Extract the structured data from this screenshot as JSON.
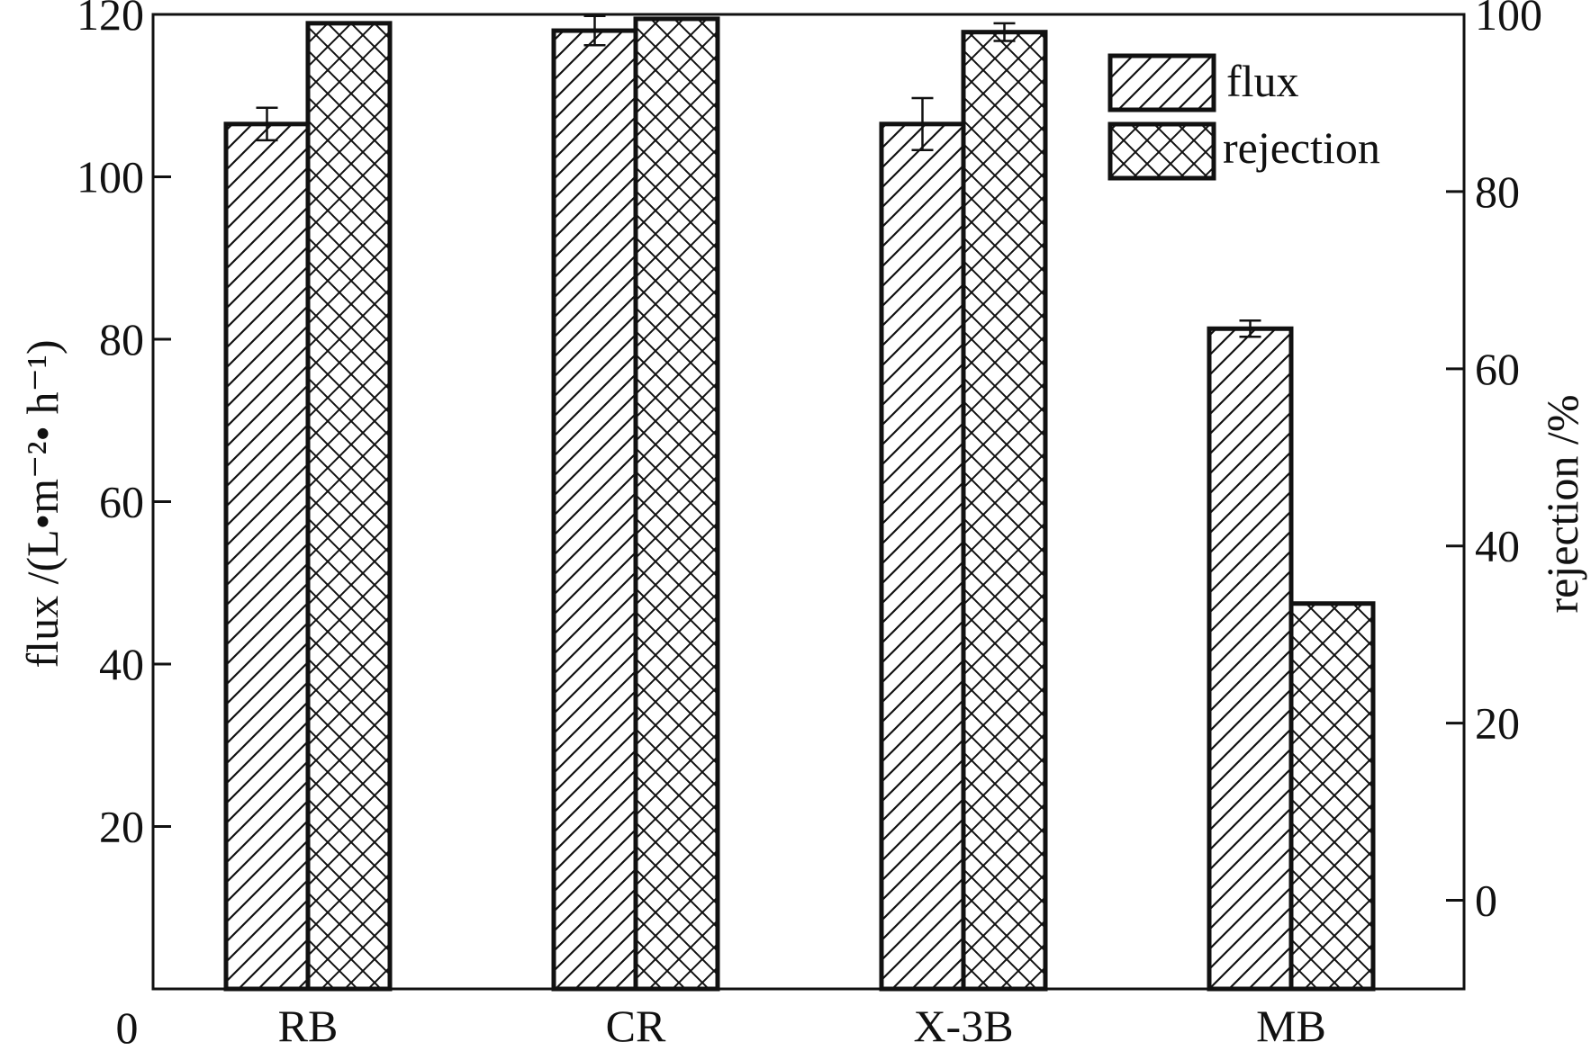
{
  "chart_data": {
    "type": "bar",
    "categories": [
      "RB",
      "CR",
      "X-3B",
      "MB"
    ],
    "series": [
      {
        "name": "flux",
        "axis": "left",
        "pattern": "diagonal-hatch",
        "values": [
          106.5,
          118.0,
          106.5,
          81.3
        ],
        "error": [
          2.0,
          1.8,
          3.2,
          1.0
        ]
      },
      {
        "name": "rejection",
        "axis": "right",
        "pattern": "cross-hatch",
        "values": [
          99.0,
          99.5,
          98.0,
          33.5
        ],
        "error": [
          0,
          0,
          1.0,
          0
        ]
      }
    ],
    "left_axis": {
      "label": "flux /(L•m⁻²• h⁻¹)",
      "range": [
        0,
        120
      ],
      "ticks": [
        20,
        40,
        60,
        80,
        100,
        120
      ],
      "tick_labels": [
        "20",
        "40",
        "60",
        "80",
        "100",
        "120"
      ]
    },
    "right_axis": {
      "label": "rejection /%",
      "range": [
        -10,
        100
      ],
      "ticks": [
        0,
        20,
        40,
        60,
        80,
        100
      ],
      "tick_labels": [
        "0",
        "20",
        "40",
        "60",
        "80",
        "100"
      ]
    },
    "origin_label": "0",
    "legend": {
      "position": "top-right",
      "entries": [
        "flux",
        "rejection"
      ]
    },
    "grid": false,
    "colors": {
      "stroke": "#111111",
      "background": "#ffffff"
    }
  }
}
